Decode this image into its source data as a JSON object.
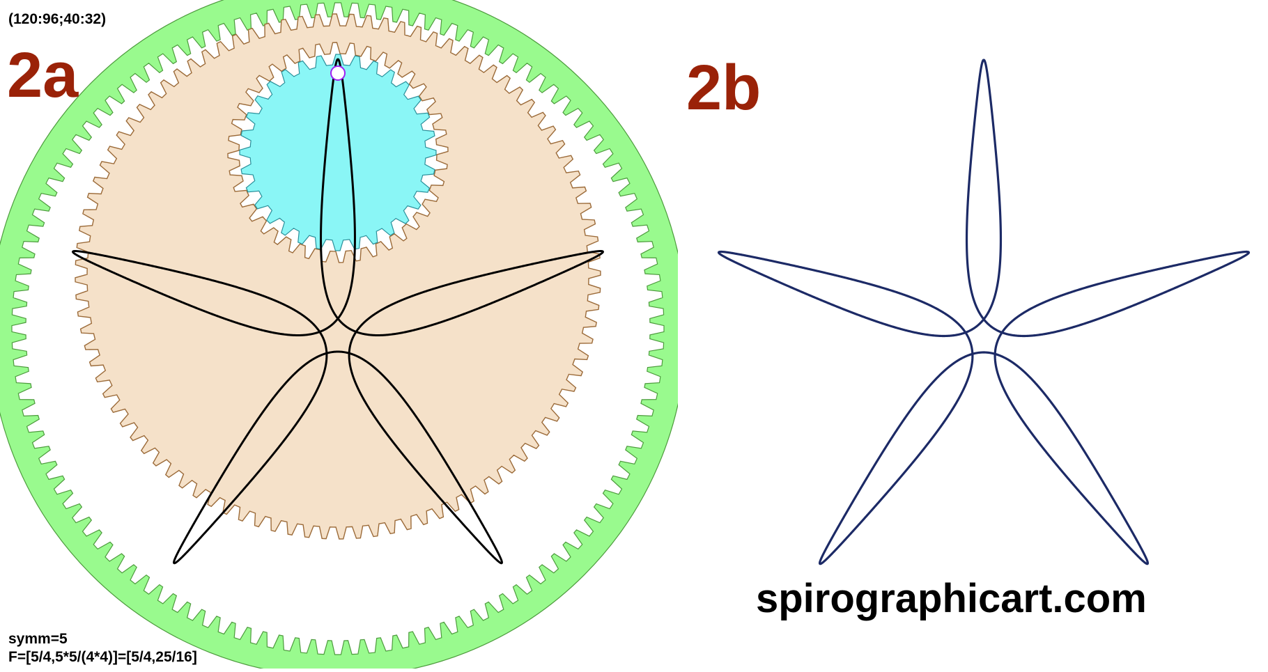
{
  "gears_readout": "(120:96;40:32)",
  "panel_a": {
    "label": "2a",
    "symm": "symm=5",
    "formula": "F=[5/4,5*5/(4*4)]=[5/4,25/16]",
    "ring_gear_teeth": 120,
    "mid_gear_teeth": 96,
    "small_gear_outer_teeth": 40,
    "small_gear_inner_teeth": 32,
    "colors": {
      "outer_ring": "#99fa8e",
      "outer_ring_edge": "#4c9a3c",
      "mid_gear_fill": "#f5e1c9",
      "mid_gear_edge": "#9b6a38",
      "small_gear_fill": "#8af6f6",
      "small_gear_edge": "#2a8f9a",
      "pen_marker": "#a020f0",
      "curve": "#000000"
    }
  },
  "panel_b": {
    "label": "2b",
    "site": "spirographicart.com",
    "colors": {
      "curve": "#1c2a66"
    }
  },
  "curve": {
    "symmetry": 5,
    "f1": 1.25,
    "f2": 1.5625
  }
}
